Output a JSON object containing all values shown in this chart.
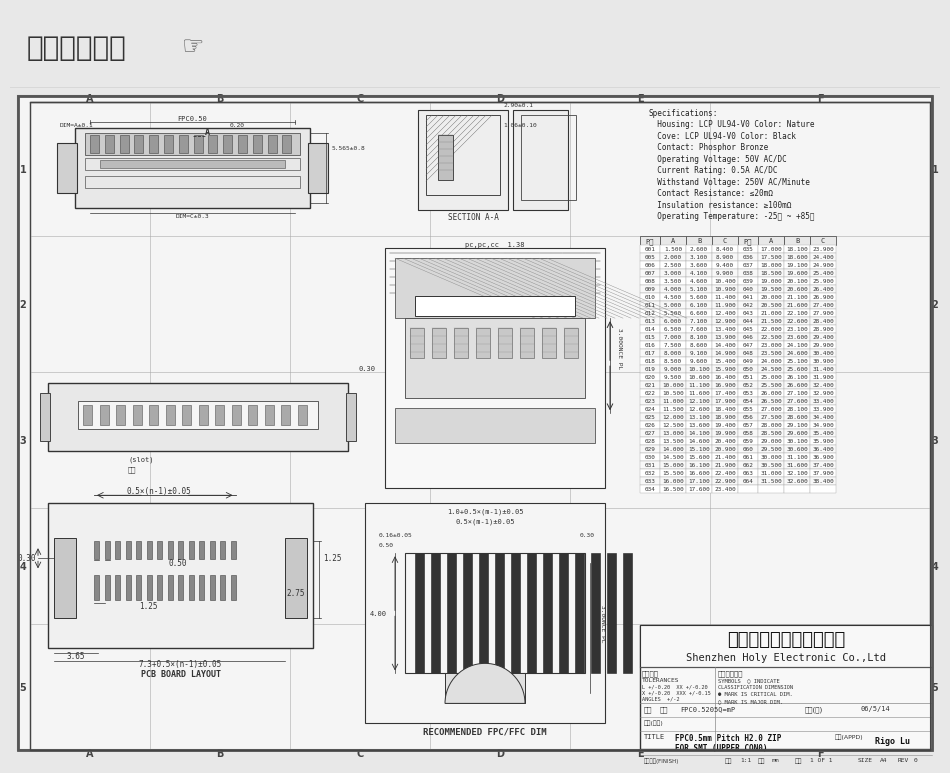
{
  "title_bar_text": "在线图纸下载",
  "title_bar_bg": "#d4d4d4",
  "main_bg": "#f0f0f0",
  "drawing_bg": "#f5f5f5",
  "specs": [
    "Specifications:",
    "  Housing: LCP UL94-V0 Color: Nature",
    "  Cove: LCP UL94-V0 Color: Black",
    "  Contact: Phosphor Bronze",
    "  Operating Voltage: 50V AC/DC",
    "  Current Rating: 0.5A AC/DC",
    "  Withstand Voltage: 250V AC/Minute",
    "  Contact Resistance: ≤20mΩ",
    "  Insulation resistance: ≥100mΩ",
    "  Operating Temperature: -25℃ ~ +85℃"
  ],
  "table_headers_left": [
    "P数",
    "A",
    "B",
    "C"
  ],
  "table_headers_right": [
    "P数",
    "A",
    "B",
    "C"
  ],
  "table_data": [
    [
      "001",
      "1.500",
      "2.600",
      "8.400",
      "035",
      "17.000",
      "18.100",
      "23.900"
    ],
    [
      "005",
      "2.000",
      "3.100",
      "8.900",
      "036",
      "17.500",
      "18.600",
      "24.400"
    ],
    [
      "006",
      "2.500",
      "3.600",
      "9.400",
      "037",
      "18.000",
      "19.100",
      "24.900"
    ],
    [
      "007",
      "3.000",
      "4.100",
      "9.900",
      "038",
      "18.500",
      "19.600",
      "25.400"
    ],
    [
      "008",
      "3.500",
      "4.600",
      "10.400",
      "039",
      "19.000",
      "20.100",
      "25.900"
    ],
    [
      "009",
      "4.000",
      "5.100",
      "10.900",
      "040",
      "19.500",
      "20.600",
      "26.400"
    ],
    [
      "010",
      "4.500",
      "5.600",
      "11.400",
      "041",
      "20.000",
      "21.100",
      "26.900"
    ],
    [
      "011",
      "5.000",
      "6.100",
      "11.900",
      "042",
      "20.500",
      "21.600",
      "27.400"
    ],
    [
      "012",
      "5.500",
      "6.600",
      "12.400",
      "043",
      "21.000",
      "22.100",
      "27.900"
    ],
    [
      "013",
      "6.000",
      "7.100",
      "12.900",
      "044",
      "21.500",
      "22.600",
      "28.400"
    ],
    [
      "014",
      "6.500",
      "7.600",
      "13.400",
      "045",
      "22.000",
      "23.100",
      "28.900"
    ],
    [
      "015",
      "7.000",
      "8.100",
      "13.900",
      "046",
      "22.500",
      "23.600",
      "29.400"
    ],
    [
      "016",
      "7.500",
      "8.600",
      "14.400",
      "047",
      "23.000",
      "24.100",
      "29.900"
    ],
    [
      "017",
      "8.000",
      "9.100",
      "14.900",
      "048",
      "23.500",
      "24.600",
      "30.400"
    ],
    [
      "018",
      "8.500",
      "9.600",
      "15.400",
      "049",
      "24.000",
      "25.100",
      "30.900"
    ],
    [
      "019",
      "9.000",
      "10.100",
      "15.900",
      "050",
      "24.500",
      "25.600",
      "31.400"
    ],
    [
      "020",
      "9.500",
      "10.600",
      "16.400",
      "051",
      "25.000",
      "26.100",
      "31.900"
    ],
    [
      "021",
      "10.000",
      "11.100",
      "16.900",
      "052",
      "25.500",
      "26.600",
      "32.400"
    ],
    [
      "022",
      "10.500",
      "11.600",
      "17.400",
      "053",
      "26.000",
      "27.100",
      "32.900"
    ],
    [
      "023",
      "11.000",
      "12.100",
      "17.900",
      "054",
      "26.500",
      "27.600",
      "33.400"
    ],
    [
      "024",
      "11.500",
      "12.600",
      "18.400",
      "055",
      "27.000",
      "28.100",
      "33.900"
    ],
    [
      "025",
      "12.000",
      "13.100",
      "18.900",
      "056",
      "27.500",
      "28.600",
      "34.400"
    ],
    [
      "026",
      "12.500",
      "13.600",
      "19.400",
      "057",
      "28.000",
      "29.100",
      "34.900"
    ],
    [
      "027",
      "13.000",
      "14.100",
      "19.900",
      "058",
      "28.500",
      "29.600",
      "35.400"
    ],
    [
      "028",
      "13.500",
      "14.600",
      "20.400",
      "059",
      "29.000",
      "30.100",
      "35.900"
    ],
    [
      "029",
      "14.000",
      "15.100",
      "20.900",
      "060",
      "29.500",
      "30.600",
      "36.400"
    ],
    [
      "030",
      "14.500",
      "15.600",
      "21.400",
      "061",
      "30.000",
      "31.100",
      "36.900"
    ],
    [
      "031",
      "15.000",
      "16.100",
      "21.900",
      "062",
      "30.500",
      "31.600",
      "37.400"
    ],
    [
      "032",
      "15.500",
      "16.600",
      "22.400",
      "063",
      "31.000",
      "32.100",
      "37.900"
    ],
    [
      "033",
      "16.000",
      "17.100",
      "22.900",
      "064",
      "31.500",
      "32.600",
      "38.400"
    ],
    [
      "034",
      "16.500",
      "17.600",
      "23.400",
      "",
      "",
      "",
      ""
    ]
  ],
  "company_cn": "深圳市宏利电子有限公司",
  "company_en": "Shenzhen Holy Electronic Co.,Ltd",
  "grid_letters": [
    "A",
    "B",
    "C",
    "D",
    "E",
    "F"
  ],
  "grid_numbers": [
    "1",
    "2",
    "3",
    "4",
    "5"
  ],
  "title_box": {
    "part_no": "FPC0.5205Q=mP",
    "title_line1": "FPC0.5mm Pitch H2.0 ZIP",
    "title_line2": "FOR SMT (UPPER CON0)",
    "scale": "1:1",
    "unit": "mm",
    "drawn_by": "Rigo Lu",
    "date": "06/5/14",
    "sheet": "1 OF 1",
    "size": "A4",
    "rev": "0"
  }
}
